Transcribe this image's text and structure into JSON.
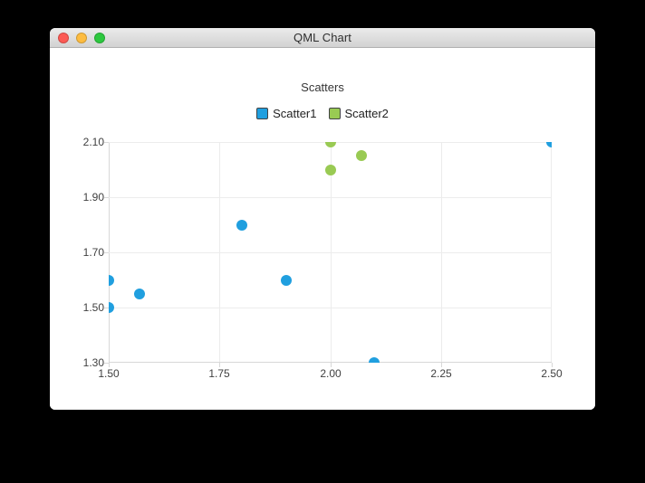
{
  "window": {
    "title": "QML Chart",
    "traffic_lights": {
      "close_color": "#fc5a54",
      "minimize_color": "#fdbc40",
      "zoom_color": "#2dc83f"
    }
  },
  "chart_data": {
    "type": "scatter",
    "title": "Scatters",
    "series": [
      {
        "name": "Scatter1",
        "color": "#209fdf",
        "points": [
          [
            1.5,
            1.5
          ],
          [
            1.5,
            1.6
          ],
          [
            1.57,
            1.55
          ],
          [
            1.8,
            1.8
          ],
          [
            1.9,
            1.6
          ],
          [
            2.1,
            1.3
          ],
          [
            2.5,
            2.1
          ]
        ]
      },
      {
        "name": "Scatter2",
        "color": "#99ca53",
        "points": [
          [
            2.0,
            2.0
          ],
          [
            2.0,
            2.1
          ],
          [
            2.07,
            2.05
          ]
        ]
      }
    ],
    "xlim": [
      1.5,
      2.5
    ],
    "ylim": [
      1.3,
      2.1
    ],
    "x_ticks": [
      "1.50",
      "1.75",
      "2.00",
      "2.25",
      "2.50"
    ],
    "y_ticks": [
      "2.10",
      "1.90",
      "1.70",
      "1.50",
      "1.30"
    ],
    "grid": true,
    "legend_position": "top",
    "marker_diameter_px": 12
  }
}
